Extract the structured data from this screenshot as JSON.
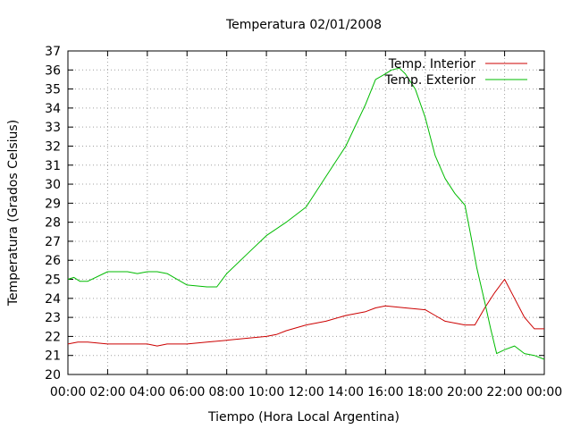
{
  "chart_data": {
    "type": "line",
    "title": "Temperatura 02/01/2008",
    "xlabel": "Tiempo (Hora Local Argentina)",
    "ylabel": "Temperatura (Grados Celsius)",
    "xlim": [
      0,
      24
    ],
    "ylim": [
      20,
      37
    ],
    "x_ticks": [
      "00:00",
      "02:00",
      "04:00",
      "06:00",
      "08:00",
      "10:00",
      "12:00",
      "14:00",
      "16:00",
      "18:00",
      "20:00",
      "22:00",
      "00:00"
    ],
    "y_ticks": [
      "20",
      "21",
      "22",
      "23",
      "24",
      "25",
      "26",
      "27",
      "28",
      "29",
      "30",
      "31",
      "32",
      "33",
      "34",
      "35",
      "36",
      "37"
    ],
    "grid": true,
    "legend_position": "top-right",
    "x_unit": "hours",
    "series": [
      {
        "name": "Temp. Interior",
        "color": "#cc0000",
        "x": [
          0,
          0.5,
          1,
          2,
          3,
          3.5,
          4,
          4.5,
          5,
          6,
          7,
          8,
          9,
          10,
          10.5,
          11,
          12,
          13,
          14,
          15,
          15.5,
          16,
          17,
          18,
          18.5,
          19,
          19.5,
          20,
          20.5,
          21,
          21.5,
          22,
          22.5,
          23,
          23.5,
          24
        ],
        "y": [
          21.6,
          21.7,
          21.7,
          21.6,
          21.6,
          21.6,
          21.6,
          21.5,
          21.6,
          21.6,
          21.7,
          21.8,
          21.9,
          22.0,
          22.1,
          22.3,
          22.6,
          22.8,
          23.1,
          23.3,
          23.5,
          23.6,
          23.5,
          23.4,
          23.1,
          22.8,
          22.7,
          22.6,
          22.6,
          23.5,
          24.3,
          25.0,
          24.0,
          23.0,
          22.4,
          22.4
        ]
      },
      {
        "name": "Temp. Exterior",
        "color": "#00bb00",
        "x": [
          0,
          0.3,
          0.6,
          1,
          2,
          2.5,
          3,
          3.5,
          4,
          4.5,
          5,
          6,
          7,
          7.5,
          8,
          9,
          10,
          11,
          12,
          13,
          14,
          15,
          15.5,
          16,
          16.3,
          16.7,
          17,
          17.5,
          18,
          18.5,
          19,
          19.5,
          20,
          20.3,
          20.6,
          21,
          21.3,
          21.6,
          22,
          22.5,
          23,
          23.5,
          24
        ],
        "y": [
          25.0,
          25.1,
          24.9,
          24.9,
          25.4,
          25.4,
          25.4,
          25.3,
          25.4,
          25.4,
          25.3,
          24.7,
          24.6,
          24.6,
          25.3,
          26.3,
          27.3,
          28.0,
          28.8,
          30.4,
          32.0,
          34.2,
          35.5,
          35.8,
          36.0,
          36.1,
          35.8,
          35.0,
          33.5,
          31.5,
          30.3,
          29.5,
          28.9,
          27.3,
          25.6,
          23.8,
          22.4,
          21.1,
          21.3,
          21.5,
          21.1,
          21.0,
          20.8
        ]
      }
    ]
  }
}
